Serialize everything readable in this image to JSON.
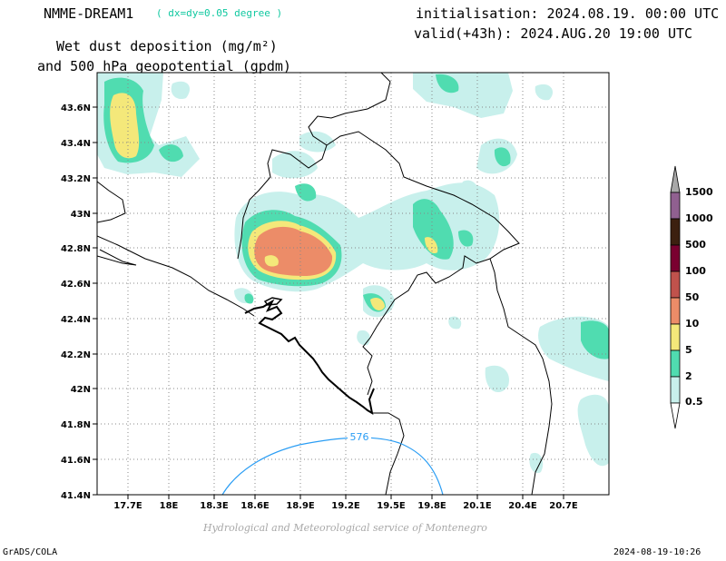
{
  "header": {
    "model_name": "NMME-DREAM1",
    "model_resolution": "( dx=dy=0.05 degree )",
    "initialisation": "initialisation: 2024.08.19. 00:00 UTC",
    "valid": "valid(+43h): 2024.AUG.20 19:00 UTC",
    "title_line1": "Wet dust deposition (mg/m²)",
    "title_line2": "and 500 hPa geopotential (gpdm)"
  },
  "map": {
    "lat_labels": [
      "43.6N",
      "43.4N",
      "43.2N",
      "43N",
      "42.8N",
      "42.6N",
      "42.4N",
      "42.2N",
      "42N",
      "41.8N",
      "41.6N",
      "41.4N"
    ],
    "lon_labels": [
      "17.7E",
      "18E",
      "18.3E",
      "18.6E",
      "18.9E",
      "19.2E",
      "19.5E",
      "19.8E",
      "20.1E",
      "20.4E",
      "20.7E"
    ],
    "contour_label": "576",
    "contour_color": "#2a9df4"
  },
  "colorbar": {
    "levels": [
      "0.5",
      "2",
      "5",
      "10",
      "50",
      "100",
      "500",
      "1000",
      "1500"
    ],
    "colors": [
      "#c8f0ec",
      "#50dcb0",
      "#f4e87a",
      "#ec8c68",
      "#c0524c",
      "#7a0030",
      "#3c2010",
      "#906090",
      "#a8a8a8"
    ]
  },
  "footer": {
    "credit": "Hydrological and Meteorological service of Montenegro",
    "left": "GrADS/COLA",
    "right": "2024-08-19-10:26"
  }
}
